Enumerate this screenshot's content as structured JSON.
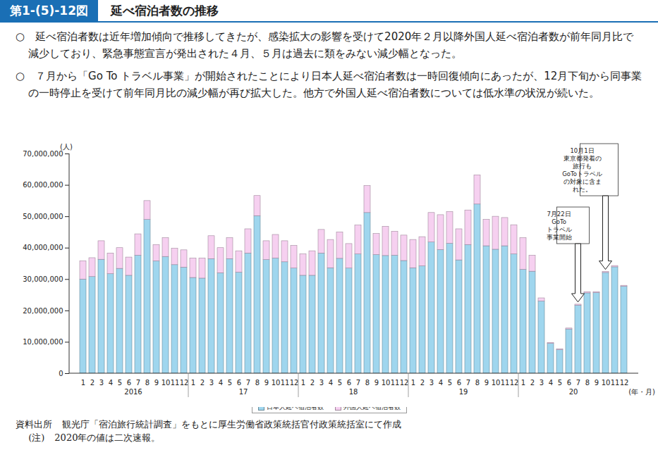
{
  "chart_data": {
    "type": "bar",
    "stacked": true,
    "figure_number": "第1-(5)-12図",
    "title": "延べ宿泊者数の推移",
    "subtitle": [
      "○　延べ宿泊者数は近年増加傾向で推移してきたが、感染拡大の影響を受けて2020年２月以降外国人延べ宿泊者数が前年同月比で減少しており、緊急事態宣言が発出された４月、５月は過去に類をみない減少幅となった。",
      "○　７月から「Go To トラベル事業」が開始されたことにより日本人延べ宿泊者数は一時回復傾向にあったが、12月下旬から同事業の一時停止を受けて前年同月比の減少幅が再び拡大した。他方で外国人延べ宿泊者数については低水準の状況が続いた。"
    ],
    "y_label": "(人)",
    "x_label": "(年・月)",
    "categories": [
      "1",
      "2",
      "3",
      "4",
      "5",
      "6",
      "7",
      "8",
      "9",
      "10",
      "11",
      "12",
      "1",
      "2",
      "3",
      "4",
      "5",
      "6",
      "7",
      "8",
      "9",
      "10",
      "11",
      "12",
      "1",
      "2",
      "3",
      "4",
      "5",
      "6",
      "7",
      "8",
      "9",
      "10",
      "11",
      "12",
      "1",
      "2",
      "3",
      "4",
      "5",
      "6",
      "7",
      "8",
      "9",
      "10",
      "11",
      "12",
      "1",
      "2",
      "3",
      "4",
      "5",
      "6",
      "7",
      "8",
      "9",
      "10",
      "11",
      "12"
    ],
    "year_labels": [
      "2016",
      "17",
      "18",
      "19",
      "20"
    ],
    "ylim": [
      0,
      70000000
    ],
    "yticks": [
      0,
      {
        "value": 10000000,
        "label": "10,000,000"
      },
      {
        "value": 20000000,
        "label": "20,000,000"
      },
      {
        "value": 30000000,
        "label": "30,000,000"
      },
      {
        "value": 40000000,
        "label": "40,000,000"
      },
      {
        "value": 50000000,
        "label": "50,000,000"
      },
      {
        "value": 60000000,
        "label": "60,000,000"
      },
      {
        "value": 70000000,
        "label": "70,000,000"
      }
    ],
    "grid": false,
    "legend": "bottom",
    "series": [
      {
        "name": "日本人延べ宿泊者数",
        "color": "#9fd6ee",
        "values": [
          30000000,
          30800000,
          36300000,
          31700000,
          33400000,
          31200000,
          37600000,
          49000000,
          35800000,
          37200000,
          34600000,
          33800000,
          30500000,
          30300000,
          36500000,
          32000000,
          36500000,
          32200000,
          38300000,
          50200000,
          36200000,
          36700000,
          35500000,
          33500000,
          31200000,
          31200000,
          38300000,
          33600000,
          36600000,
          33500000,
          38000000,
          51200000,
          37800000,
          37500000,
          37600000,
          35900000,
          33600000,
          34200000,
          41800000,
          39400000,
          41400000,
          36100000,
          41000000,
          53900000,
          40600000,
          39500000,
          40600000,
          38000000,
          33100000,
          32500000,
          23000000,
          9500000,
          7500000,
          14100000,
          21700000,
          25600000,
          25700000,
          32100000,
          33900000,
          27700000
        ]
      },
      {
        "name": "外国人延べ宿泊者数",
        "color": "#f6d0f0",
        "values": [
          5800000,
          6000000,
          5900000,
          6600000,
          6600000,
          5800000,
          6800000,
          6000000,
          5200000,
          6000000,
          5200000,
          5500000,
          6200000,
          6400000,
          7300000,
          8000000,
          6700000,
          6800000,
          7700000,
          6400000,
          6000000,
          7500000,
          6700000,
          7200000,
          6800000,
          7800000,
          7500000,
          9000000,
          8400000,
          7800000,
          9200000,
          8600000,
          6700000,
          9300000,
          7600000,
          8100000,
          9000000,
          9300000,
          9400000,
          11100000,
          10100000,
          9900000,
          11000000,
          9300000,
          8400000,
          10500000,
          9000000,
          9300000,
          10100000,
          5100000,
          1000000,
          300000,
          300000,
          300000,
          300000,
          400000,
          300000,
          300000,
          400000,
          300000
        ]
      }
    ],
    "annotations": [
      {
        "year": "20",
        "month": "10",
        "text": [
          "10月1日",
          "東京都発着の",
          "旅行も",
          "GoToトラベル",
          "の対象に含ま",
          "れた。"
        ]
      },
      {
        "year": "20",
        "month": "7",
        "text": [
          "7月22日",
          "GoTo",
          "トラベル",
          "事業開始"
        ]
      }
    ],
    "source": {
      "label": "資料出所",
      "text": "観光庁「宿泊旅行統計調査」をもとに厚生労働省政策統括官付政策統括室にて作成"
    },
    "note": {
      "label": "(注)",
      "text": "2020年の値は二次速報。"
    }
  }
}
